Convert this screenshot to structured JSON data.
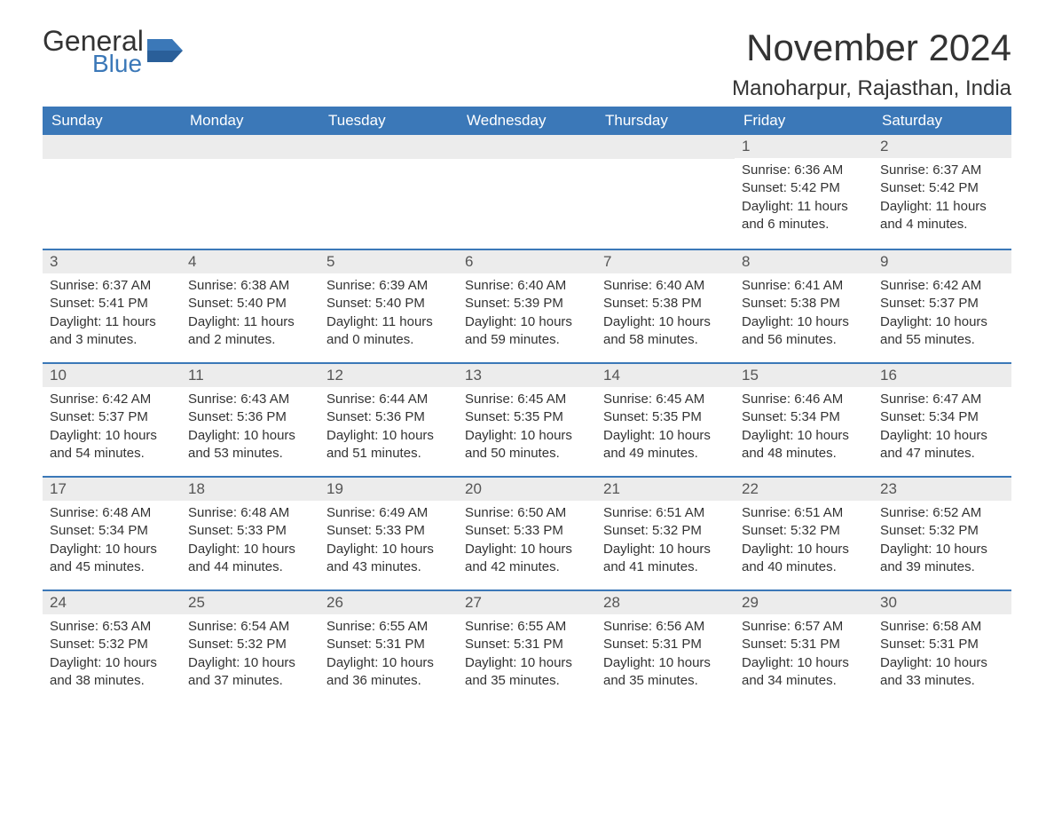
{
  "logo": {
    "general": "General",
    "blue": "Blue"
  },
  "title": "November 2024",
  "location": "Manoharpur, Rajasthan, India",
  "colors": {
    "header_bg": "#3b78b8",
    "header_text": "#ffffff",
    "daynum_bg": "#ececec",
    "border": "#3b78b8",
    "body_text": "#333333"
  },
  "dayNames": [
    "Sunday",
    "Monday",
    "Tuesday",
    "Wednesday",
    "Thursday",
    "Friday",
    "Saturday"
  ],
  "weeks": [
    [
      null,
      null,
      null,
      null,
      null,
      {
        "n": "1",
        "sunrise": "Sunrise: 6:36 AM",
        "sunset": "Sunset: 5:42 PM",
        "daylight": "Daylight: 11 hours and 6 minutes."
      },
      {
        "n": "2",
        "sunrise": "Sunrise: 6:37 AM",
        "sunset": "Sunset: 5:42 PM",
        "daylight": "Daylight: 11 hours and 4 minutes."
      }
    ],
    [
      {
        "n": "3",
        "sunrise": "Sunrise: 6:37 AM",
        "sunset": "Sunset: 5:41 PM",
        "daylight": "Daylight: 11 hours and 3 minutes."
      },
      {
        "n": "4",
        "sunrise": "Sunrise: 6:38 AM",
        "sunset": "Sunset: 5:40 PM",
        "daylight": "Daylight: 11 hours and 2 minutes."
      },
      {
        "n": "5",
        "sunrise": "Sunrise: 6:39 AM",
        "sunset": "Sunset: 5:40 PM",
        "daylight": "Daylight: 11 hours and 0 minutes."
      },
      {
        "n": "6",
        "sunrise": "Sunrise: 6:40 AM",
        "sunset": "Sunset: 5:39 PM",
        "daylight": "Daylight: 10 hours and 59 minutes."
      },
      {
        "n": "7",
        "sunrise": "Sunrise: 6:40 AM",
        "sunset": "Sunset: 5:38 PM",
        "daylight": "Daylight: 10 hours and 58 minutes."
      },
      {
        "n": "8",
        "sunrise": "Sunrise: 6:41 AM",
        "sunset": "Sunset: 5:38 PM",
        "daylight": "Daylight: 10 hours and 56 minutes."
      },
      {
        "n": "9",
        "sunrise": "Sunrise: 6:42 AM",
        "sunset": "Sunset: 5:37 PM",
        "daylight": "Daylight: 10 hours and 55 minutes."
      }
    ],
    [
      {
        "n": "10",
        "sunrise": "Sunrise: 6:42 AM",
        "sunset": "Sunset: 5:37 PM",
        "daylight": "Daylight: 10 hours and 54 minutes."
      },
      {
        "n": "11",
        "sunrise": "Sunrise: 6:43 AM",
        "sunset": "Sunset: 5:36 PM",
        "daylight": "Daylight: 10 hours and 53 minutes."
      },
      {
        "n": "12",
        "sunrise": "Sunrise: 6:44 AM",
        "sunset": "Sunset: 5:36 PM",
        "daylight": "Daylight: 10 hours and 51 minutes."
      },
      {
        "n": "13",
        "sunrise": "Sunrise: 6:45 AM",
        "sunset": "Sunset: 5:35 PM",
        "daylight": "Daylight: 10 hours and 50 minutes."
      },
      {
        "n": "14",
        "sunrise": "Sunrise: 6:45 AM",
        "sunset": "Sunset: 5:35 PM",
        "daylight": "Daylight: 10 hours and 49 minutes."
      },
      {
        "n": "15",
        "sunrise": "Sunrise: 6:46 AM",
        "sunset": "Sunset: 5:34 PM",
        "daylight": "Daylight: 10 hours and 48 minutes."
      },
      {
        "n": "16",
        "sunrise": "Sunrise: 6:47 AM",
        "sunset": "Sunset: 5:34 PM",
        "daylight": "Daylight: 10 hours and 47 minutes."
      }
    ],
    [
      {
        "n": "17",
        "sunrise": "Sunrise: 6:48 AM",
        "sunset": "Sunset: 5:34 PM",
        "daylight": "Daylight: 10 hours and 45 minutes."
      },
      {
        "n": "18",
        "sunrise": "Sunrise: 6:48 AM",
        "sunset": "Sunset: 5:33 PM",
        "daylight": "Daylight: 10 hours and 44 minutes."
      },
      {
        "n": "19",
        "sunrise": "Sunrise: 6:49 AM",
        "sunset": "Sunset: 5:33 PM",
        "daylight": "Daylight: 10 hours and 43 minutes."
      },
      {
        "n": "20",
        "sunrise": "Sunrise: 6:50 AM",
        "sunset": "Sunset: 5:33 PM",
        "daylight": "Daylight: 10 hours and 42 minutes."
      },
      {
        "n": "21",
        "sunrise": "Sunrise: 6:51 AM",
        "sunset": "Sunset: 5:32 PM",
        "daylight": "Daylight: 10 hours and 41 minutes."
      },
      {
        "n": "22",
        "sunrise": "Sunrise: 6:51 AM",
        "sunset": "Sunset: 5:32 PM",
        "daylight": "Daylight: 10 hours and 40 minutes."
      },
      {
        "n": "23",
        "sunrise": "Sunrise: 6:52 AM",
        "sunset": "Sunset: 5:32 PM",
        "daylight": "Daylight: 10 hours and 39 minutes."
      }
    ],
    [
      {
        "n": "24",
        "sunrise": "Sunrise: 6:53 AM",
        "sunset": "Sunset: 5:32 PM",
        "daylight": "Daylight: 10 hours and 38 minutes."
      },
      {
        "n": "25",
        "sunrise": "Sunrise: 6:54 AM",
        "sunset": "Sunset: 5:32 PM",
        "daylight": "Daylight: 10 hours and 37 minutes."
      },
      {
        "n": "26",
        "sunrise": "Sunrise: 6:55 AM",
        "sunset": "Sunset: 5:31 PM",
        "daylight": "Daylight: 10 hours and 36 minutes."
      },
      {
        "n": "27",
        "sunrise": "Sunrise: 6:55 AM",
        "sunset": "Sunset: 5:31 PM",
        "daylight": "Daylight: 10 hours and 35 minutes."
      },
      {
        "n": "28",
        "sunrise": "Sunrise: 6:56 AM",
        "sunset": "Sunset: 5:31 PM",
        "daylight": "Daylight: 10 hours and 35 minutes."
      },
      {
        "n": "29",
        "sunrise": "Sunrise: 6:57 AM",
        "sunset": "Sunset: 5:31 PM",
        "daylight": "Daylight: 10 hours and 34 minutes."
      },
      {
        "n": "30",
        "sunrise": "Sunrise: 6:58 AM",
        "sunset": "Sunset: 5:31 PM",
        "daylight": "Daylight: 10 hours and 33 minutes."
      }
    ]
  ]
}
